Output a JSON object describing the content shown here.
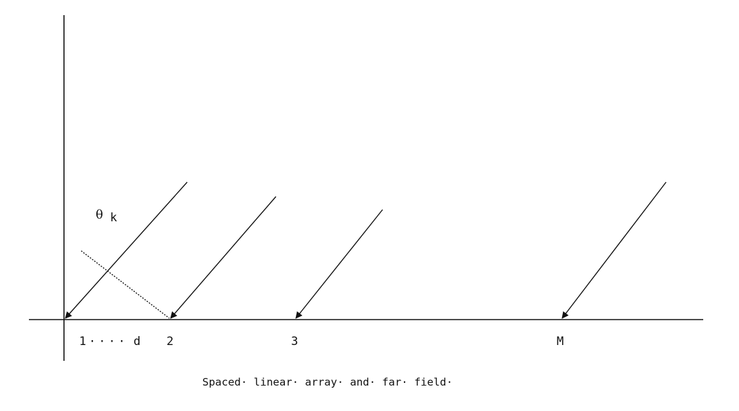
{
  "diagram": {
    "elements": [
      {
        "label": "1"
      },
      {
        "label": "2"
      },
      {
        "label": "3"
      },
      {
        "label": "M"
      }
    ],
    "spacing_dots": "····",
    "spacing_label": "d",
    "angle_symbol": "θ",
    "angle_subscript": "k",
    "caption": "Spaced· linear· array· and· far· field·"
  },
  "colors": {
    "line": "#111111",
    "background": "#ffffff"
  }
}
